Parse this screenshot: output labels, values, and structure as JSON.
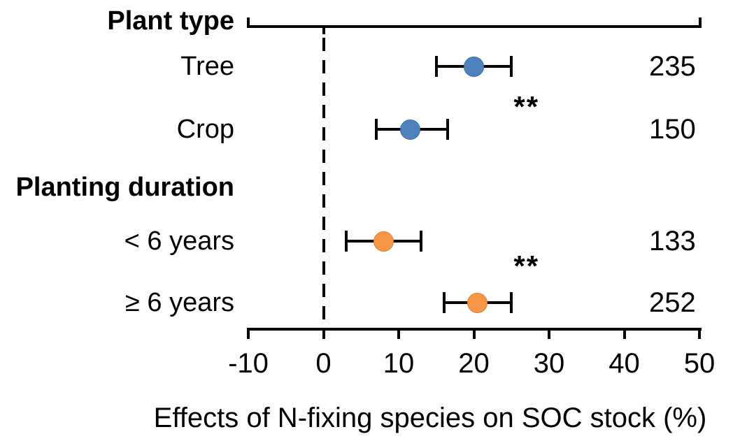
{
  "chart_data": {
    "type": "forest",
    "title": "",
    "xlabel": "Effects of N-fixing species on SOC stock (%)",
    "xlim": [
      -10,
      50
    ],
    "x_ticks": [
      -10,
      0,
      10,
      20,
      30,
      40,
      50
    ],
    "zero_line_x": 0,
    "grid": false,
    "colors": {
      "plant_type_marker": "#4f81bd",
      "plant_type_marker_border": "#3c6da8",
      "planting_duration_marker": "#f79646",
      "planting_duration_marker_border": "#e07f2c",
      "axis": "#000000"
    },
    "groups": [
      {
        "label": "Plant type",
        "marker_color": "#4f81bd",
        "marker_border": "#3c6da8",
        "significance": "**",
        "significance_x": 27,
        "rows": [
          {
            "label": "Tree",
            "mean": 20,
            "ci_low": 15,
            "ci_high": 25,
            "n": 235
          },
          {
            "label": "Crop",
            "mean": 11.5,
            "ci_low": 7,
            "ci_high": 16.5,
            "n": 150
          }
        ]
      },
      {
        "label": "Planting duration",
        "marker_color": "#f79646",
        "marker_border": "#e07f2c",
        "significance": "**",
        "significance_x": 27,
        "rows": [
          {
            "label": "< 6 years",
            "mean": 8,
            "ci_low": 3,
            "ci_high": 13,
            "n": 133
          },
          {
            "label": "≥ 6 years",
            "mean": 20.5,
            "ci_low": 16,
            "ci_high": 25,
            "n": 252
          }
        ]
      }
    ]
  }
}
